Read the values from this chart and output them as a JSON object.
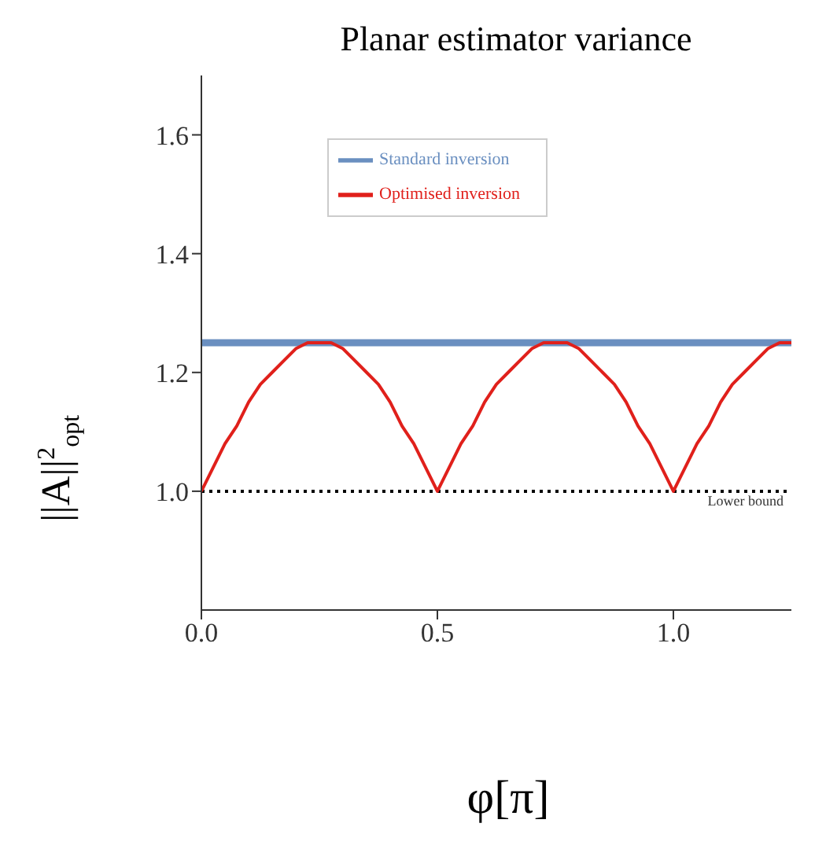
{
  "chart_data": {
    "type": "line",
    "title": "Planar estimator variance",
    "xlabel": "φ[π]",
    "ylabel": "||A||$^{2}$$_{opt}$",
    "xlim": [
      0,
      1.25
    ],
    "xticks": [
      {
        "value": 0,
        "label": "0.0"
      },
      0.5,
      {
        "value": 1,
        "label": "1.0"
      }
    ],
    "ylim": [
      0.8,
      1.7
    ],
    "yticks": [
      {
        "value": 1,
        "label": "1.0"
      },
      1.2,
      1.4,
      1.6
    ],
    "grid": false,
    "legend": "top left",
    "marker": "none",
    "line_style": "solid",
    "series": [
      {
        "name": "Standard inversion",
        "color": "#6a8fc0",
        "x": [
          0,
          1.25
        ],
        "values": [
          1.25,
          1.25
        ]
      },
      {
        "name": "Optimised inversion",
        "color": "#e0201b",
        "x": [
          0,
          0.025,
          0.05,
          0.075,
          0.1,
          0.125,
          0.15,
          0.175,
          0.2,
          0.225,
          0.25,
          0.275,
          0.3,
          0.325,
          0.35,
          0.375,
          0.4,
          0.425,
          0.45,
          0.475,
          0.5,
          0.525,
          0.55,
          0.575,
          0.6,
          0.625,
          0.65,
          0.675,
          0.7,
          0.725,
          0.75,
          0.775,
          0.8,
          0.825,
          0.85,
          0.875,
          0.9,
          0.925,
          0.95,
          0.975,
          1,
          1.025,
          1.05,
          1.075,
          1.1,
          1.125,
          1.15,
          1.175,
          1.2,
          1.225,
          1.25
        ],
        "values": [
          1.0,
          1.04,
          1.08,
          1.11,
          1.15,
          1.18,
          1.2,
          1.22,
          1.24,
          1.25,
          1.25,
          1.25,
          1.24,
          1.22,
          1.2,
          1.18,
          1.15,
          1.11,
          1.08,
          1.04,
          1.0,
          1.04,
          1.08,
          1.11,
          1.15,
          1.18,
          1.2,
          1.22,
          1.24,
          1.25,
          1.25,
          1.25,
          1.24,
          1.22,
          1.2,
          1.18,
          1.15,
          1.11,
          1.08,
          1.04,
          1.0,
          1.04,
          1.08,
          1.11,
          1.15,
          1.18,
          1.2,
          1.22,
          1.24,
          1.25,
          1.25
        ]
      }
    ],
    "ref_lines": [
      {
        "axis": "y",
        "value": 1,
        "label": "Lower bound",
        "color": "#000000",
        "line_style": "dotted"
      }
    ]
  }
}
